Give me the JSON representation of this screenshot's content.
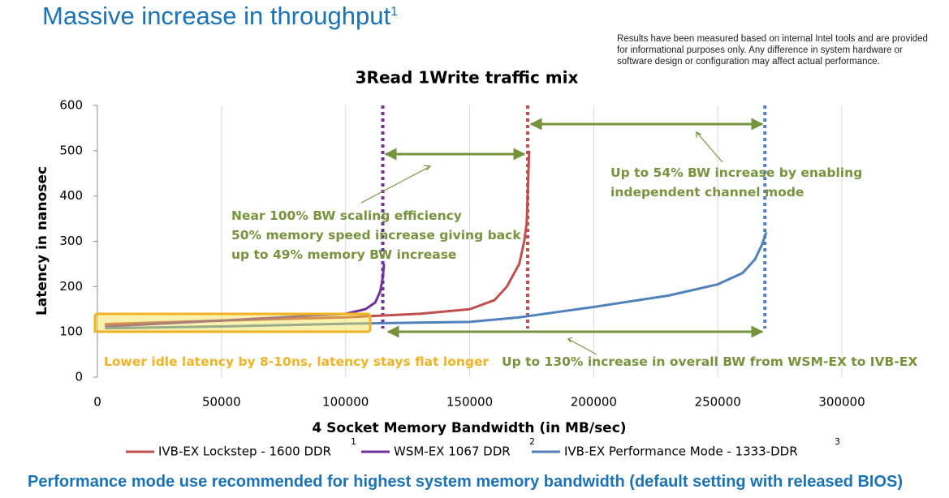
{
  "title": "Massive increase in throughput",
  "title_note": "1",
  "disclaimer": "Results have been measured based on internal Intel tools and are provided for informational purposes only. Any difference in system hardware or software design or configuration may affect actual performance.",
  "footer": "Performance mode use recommended for highest system memory bandwidth (default setting with released BIOS)",
  "chart_data": {
    "type": "line",
    "title": "3Read 1Write traffic mix",
    "xlabel": "4 Socket Memory Bandwidth (in MB/sec)",
    "ylabel": "Latency in nanosec",
    "xlim": [
      0,
      300000
    ],
    "xticks": [
      0,
      50000,
      100000,
      150000,
      200000,
      250000,
      300000
    ],
    "ylim": [
      0,
      600
    ],
    "yticks": [
      0,
      100,
      200,
      300,
      400,
      500,
      600
    ],
    "series": [
      {
        "name": "IVB-EX Lockstep - 1600 DDR",
        "note": "1",
        "color": "#c0504d",
        "x": [
          3000,
          50000,
          100000,
          130000,
          150000,
          160000,
          165000,
          170000,
          172000,
          173000,
          173500,
          174000
        ],
        "values": [
          117,
          125,
          132,
          140,
          150,
          170,
          200,
          250,
          300,
          340,
          420,
          500
        ]
      },
      {
        "name": "WSM-EX 1067 DDR",
        "note": "2",
        "color": "#7030a0",
        "x": [
          3000,
          50000,
          100000,
          108000,
          112000,
          114000,
          115000,
          115500
        ],
        "values": [
          112,
          125,
          140,
          150,
          165,
          190,
          220,
          250
        ]
      },
      {
        "name": "IVB-EX Performance Mode - 1333-DDR",
        "note": "3",
        "color": "#4f81bd",
        "x": [
          3000,
          50000,
          100000,
          150000,
          170000,
          200000,
          230000,
          250000,
          260000,
          265000,
          268000,
          269500
        ],
        "values": [
          108,
          112,
          118,
          122,
          132,
          155,
          180,
          205,
          230,
          260,
          295,
          320
        ]
      }
    ],
    "vlines": [
      {
        "x": 115000,
        "color": "#7030a0"
      },
      {
        "x": 173400,
        "color": "#c0504d"
      },
      {
        "x": 269000,
        "color": "#4f81bd"
      }
    ],
    "annotations": [
      {
        "lines": [
          "Near 100% BW scaling efficiency",
          "50% memory speed increase giving back",
          "up to 49% memory BW increase"
        ],
        "color": "#77933c"
      },
      {
        "lines": [
          "Up to 54% BW increase by enabling",
          "independent channel mode"
        ],
        "color": "#77933c"
      },
      {
        "lines": [
          "Up to 130% increase in overall BW from WSM-EX to  IVB-EX"
        ],
        "color": "#77933c"
      },
      {
        "lines": [
          "Lower idle latency by 8-10ns, latency stays flat longer"
        ],
        "color": "#f0b323"
      }
    ]
  }
}
